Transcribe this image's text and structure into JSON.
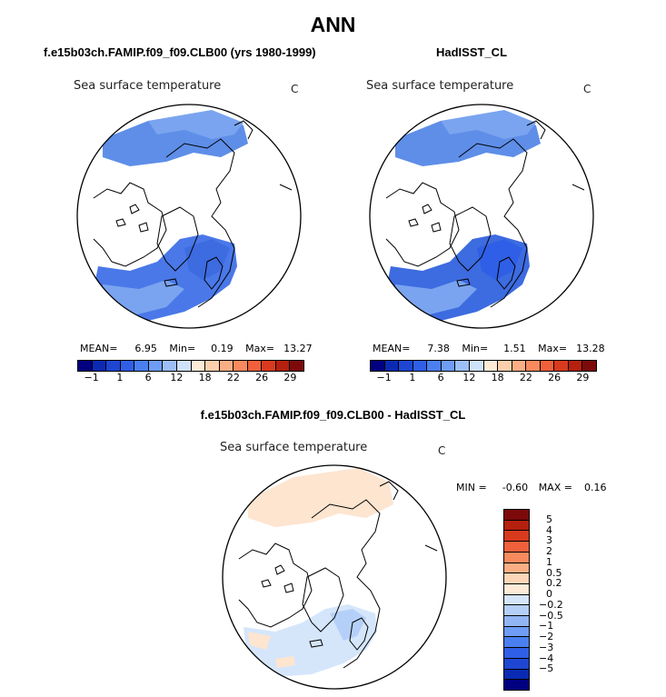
{
  "title": "ANN",
  "panels": [
    {
      "case": "f.e15b03ch.FAMIP.f09_f09.CLB00 (yrs 1980-1999)",
      "variable": "Sea surface temperature",
      "units": "C",
      "stats": {
        "mean_label": "MEAN=",
        "mean": "6.95",
        "min_label": "Min=",
        "min": "0.19",
        "max_label": "Max=",
        "max": "13.27"
      }
    },
    {
      "case": "HadISST_CL",
      "variable": "Sea surface temperature",
      "units": "C",
      "stats": {
        "mean_label": "MEAN=",
        "mean": "7.38",
        "min_label": "Min=",
        "min": "1.51",
        "max_label": "Max=",
        "max": "13.28"
      }
    }
  ],
  "abs_colorbar": {
    "colors": [
      "#000080",
      "#0a2ab4",
      "#1e46d2",
      "#2f5fe6",
      "#4a7ff0",
      "#6f9df5",
      "#9dbff8",
      "#cfe2fb",
      "#fdebd8",
      "#fcd0ac",
      "#fbae84",
      "#f98a5d",
      "#f0613b",
      "#d83a1e",
      "#b5200f",
      "#7d0a0a"
    ],
    "labels": [
      "-1",
      "1",
      "6",
      "12",
      "18",
      "22",
      "26",
      "29"
    ]
  },
  "diff_panel": {
    "case": "f.e15b03ch.FAMIP.f09_f09.CLB00 - HadISST_CL",
    "variable": "Sea surface temperature",
    "units": "C",
    "min_label": "MIN =",
    "min": "-0.60",
    "max_label": "MAX =",
    "max": "0.16"
  },
  "diff_colorbar": {
    "colors": [
      "#7d0a0a",
      "#b5200f",
      "#d83a1e",
      "#f0613b",
      "#f98a5d",
      "#fbae84",
      "#fdd6b8",
      "#fdebd8",
      "#d5e6fb",
      "#b5d0f8",
      "#92b6f4",
      "#6f9df5",
      "#4a7ff0",
      "#2f5fe6",
      "#1e46d2",
      "#0a2ab4",
      "#000080"
    ],
    "labels": [
      "5",
      "4",
      "3",
      "2",
      "1",
      "0.5",
      "0.2",
      "0",
      "-0.2",
      "-0.5",
      "-1",
      "-2",
      "-3",
      "-4",
      "-5"
    ]
  },
  "colors": {
    "land": "#ffffff",
    "coast": "#000000"
  }
}
